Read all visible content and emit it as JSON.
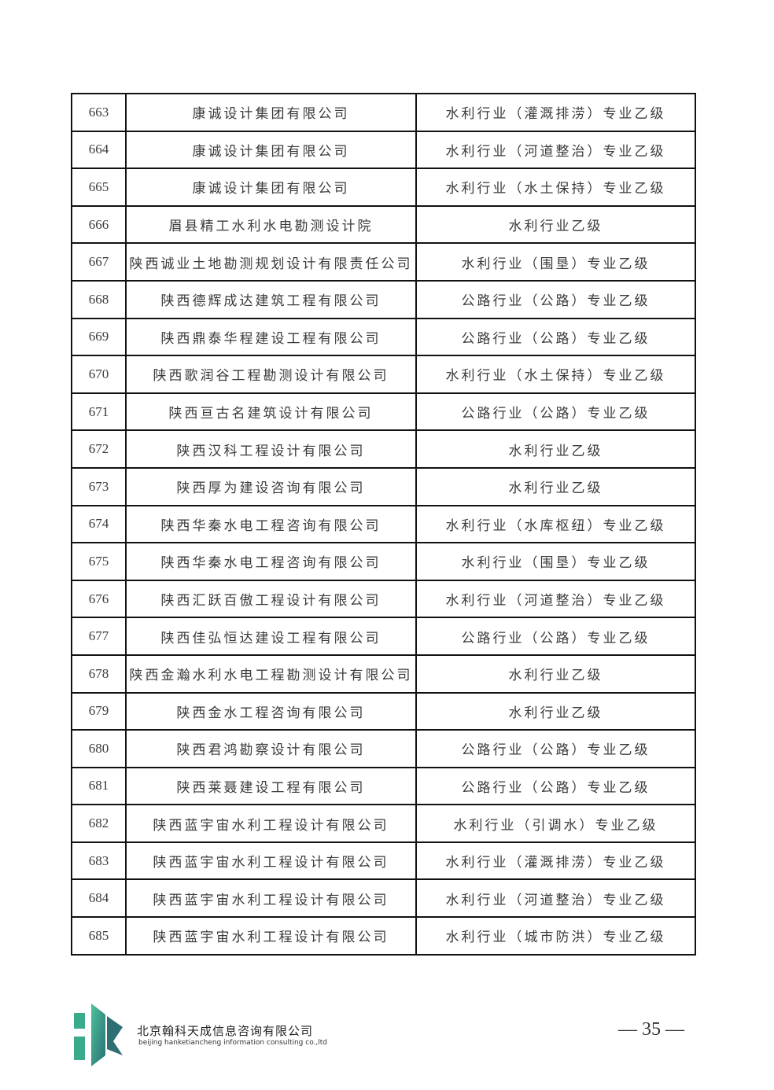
{
  "rows": [
    {
      "no": "663",
      "company": "康诚设计集团有限公司",
      "qualification": "水利行业（灌溉排涝）专业乙级"
    },
    {
      "no": "664",
      "company": "康诚设计集团有限公司",
      "qualification": "水利行业（河道整治）专业乙级"
    },
    {
      "no": "665",
      "company": "康诚设计集团有限公司",
      "qualification": "水利行业（水土保持）专业乙级"
    },
    {
      "no": "666",
      "company": "眉县精工水利水电勘测设计院",
      "qualification": "水利行业乙级"
    },
    {
      "no": "667",
      "company": "陕西诚业土地勘测规划设计有限责任公司",
      "qualification": "水利行业（围垦）专业乙级"
    },
    {
      "no": "668",
      "company": "陕西德辉成达建筑工程有限公司",
      "qualification": "公路行业（公路）专业乙级"
    },
    {
      "no": "669",
      "company": "陕西鼎泰华程建设工程有限公司",
      "qualification": "公路行业（公路）专业乙级"
    },
    {
      "no": "670",
      "company": "陕西歌润谷工程勘测设计有限公司",
      "qualification": "水利行业（水土保持）专业乙级"
    },
    {
      "no": "671",
      "company": "陕西亘古名建筑设计有限公司",
      "qualification": "公路行业（公路）专业乙级"
    },
    {
      "no": "672",
      "company": "陕西汉科工程设计有限公司",
      "qualification": "水利行业乙级"
    },
    {
      "no": "673",
      "company": "陕西厚为建设咨询有限公司",
      "qualification": "水利行业乙级"
    },
    {
      "no": "674",
      "company": "陕西华秦水电工程咨询有限公司",
      "qualification": "水利行业（水库枢纽）专业乙级"
    },
    {
      "no": "675",
      "company": "陕西华秦水电工程咨询有限公司",
      "qualification": "水利行业（围垦）专业乙级"
    },
    {
      "no": "676",
      "company": "陕西汇跃百傲工程设计有限公司",
      "qualification": "水利行业（河道整治）专业乙级"
    },
    {
      "no": "677",
      "company": "陕西佳弘恒达建设工程有限公司",
      "qualification": "公路行业（公路）专业乙级"
    },
    {
      "no": "678",
      "company": "陕西金瀚水利水电工程勘测设计有限公司",
      "qualification": "水利行业乙级"
    },
    {
      "no": "679",
      "company": "陕西金水工程咨询有限公司",
      "qualification": "水利行业乙级"
    },
    {
      "no": "680",
      "company": "陕西君鸿勘察设计有限公司",
      "qualification": "公路行业（公路）专业乙级"
    },
    {
      "no": "681",
      "company": "陕西莱聂建设工程有限公司",
      "qualification": "公路行业（公路）专业乙级"
    },
    {
      "no": "682",
      "company": "陕西蓝宇宙水利工程设计有限公司",
      "qualification": "水利行业（引调水）专业乙级"
    },
    {
      "no": "683",
      "company": "陕西蓝宇宙水利工程设计有限公司",
      "qualification": "水利行业（灌溉排涝）专业乙级"
    },
    {
      "no": "684",
      "company": "陕西蓝宇宙水利工程设计有限公司",
      "qualification": "水利行业（河道整治）专业乙级"
    },
    {
      "no": "685",
      "company": "陕西蓝宇宙水利工程设计有限公司",
      "qualification": "水利行业（城市防洪）专业乙级"
    }
  ],
  "footer": {
    "company_cn": "北京翰科天成信息咨询有限公司",
    "company_en": "beijing hanketiancheng information consulting co.,ltd",
    "page_number": "— 35 —",
    "logo_colors": [
      "#3aaa8c",
      "#2f6e73"
    ]
  }
}
